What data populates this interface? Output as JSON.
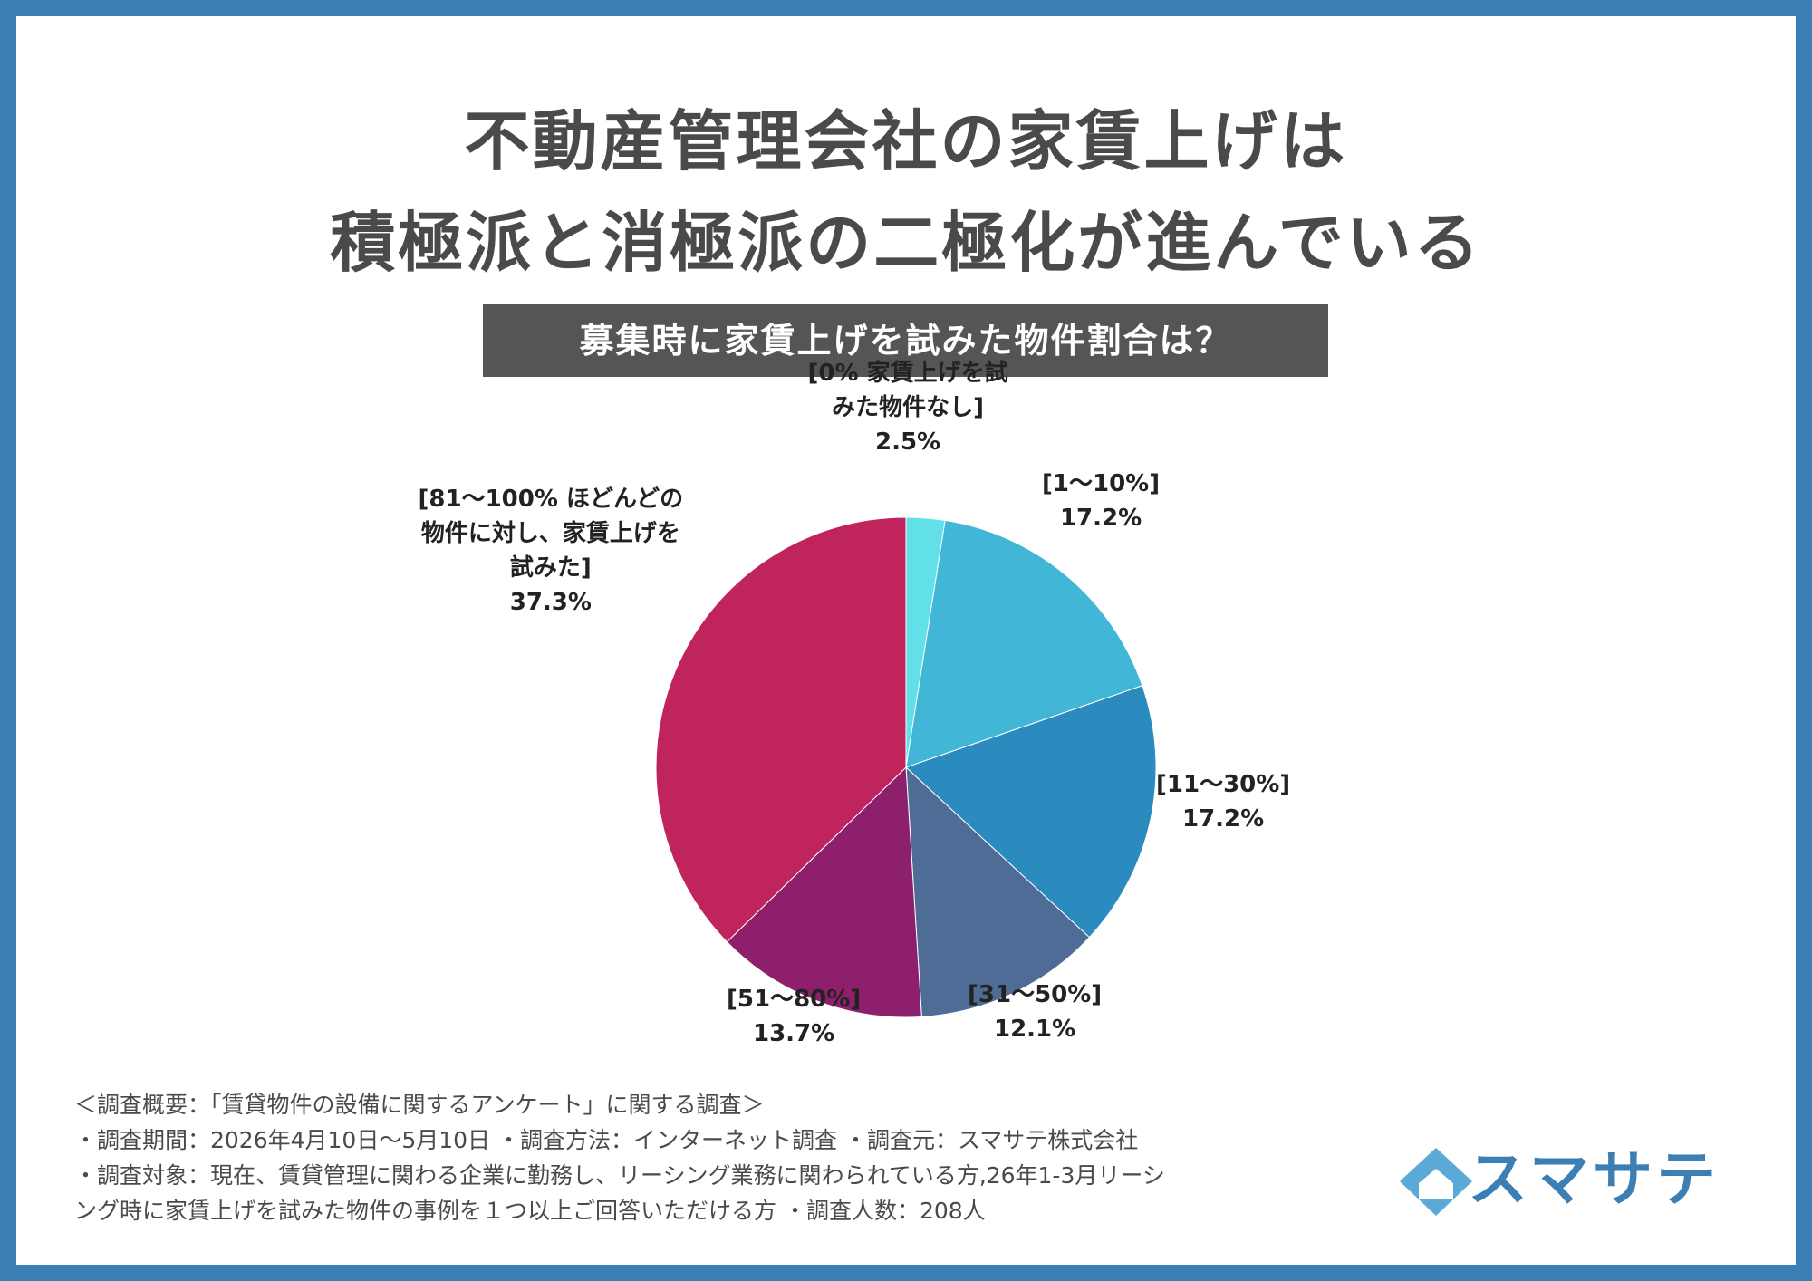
{
  "title": {
    "line1": "不動産管理会社の家賃上げは",
    "line2": "積極派と消極派の二極化が進んでいる"
  },
  "subtitle": "募集時に家賃上げを試みた物件割合は？",
  "chart_data": {
    "type": "pie",
    "title": "募集時に家賃上げを試みた物件割合は？",
    "slices": [
      {
        "label": "[0% 家賃上げを試みた物件なし]",
        "label_lines": [
          "[0% 家賃上げを試",
          "みた物件なし]"
        ],
        "value": 2.5,
        "value_text": "2.5%",
        "color": "#62e0e8"
      },
      {
        "label": "[1〜10%]",
        "label_lines": [
          "[1〜10%]"
        ],
        "value": 17.2,
        "value_text": "17.2%",
        "color": "#41b6d6"
      },
      {
        "label": "[11〜30%]",
        "label_lines": [
          "[11〜30%]"
        ],
        "value": 17.2,
        "value_text": "17.2%",
        "color": "#2b8bbf"
      },
      {
        "label": "[31〜50%]",
        "label_lines": [
          "[31〜50%]"
        ],
        "value": 12.1,
        "value_text": "12.1%",
        "color": "#4e6c96"
      },
      {
        "label": "[51〜80%]",
        "label_lines": [
          "[51〜80%]"
        ],
        "value": 13.7,
        "value_text": "13.7%",
        "color": "#8e1f6d"
      },
      {
        "label": "[81〜100% ほどんどの物件に対し、家賃上げを試みた]",
        "label_lines": [
          "[81〜100% ほどんどの",
          "物件に対し、家賃上げを",
          "試みた]"
        ],
        "value": 37.3,
        "value_text": "37.3%",
        "color": "#c0245d"
      }
    ]
  },
  "notes": {
    "line1": "＜調査概要：「賃貸物件の設備に関するアンケート」に関する調査＞",
    "line2": "・調査期間：2026年4月10日〜5月10日 ・調査方法：インターネット調査 ・調査元：スマサテ株式会社",
    "line3": "・調査対象：現在、賃貸管理に関わる企業に勤務し、リーシング業務に関わられている方,26年1-3月リーシ",
    "line4": "ング時に家賃上げを試みた物件の事例を１つ以上ご回答いただける方 ・調査人数：208人"
  },
  "logo": {
    "text": "スマサテ",
    "colors": {
      "light": "#5aa9d6",
      "dark": "#3b7fb5"
    }
  }
}
